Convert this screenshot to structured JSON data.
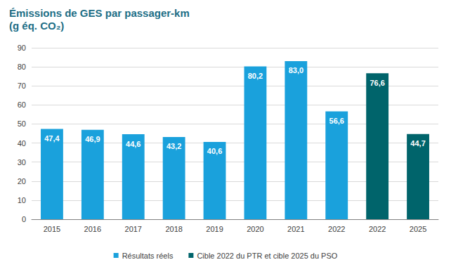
{
  "chart_data": {
    "type": "bar",
    "title": "Émissions de GES par passager-km\n(g éq. CO₂)",
    "categories": [
      "2015",
      "2016",
      "2017",
      "2018",
      "2019",
      "2020",
      "2021",
      "2022",
      "2022",
      "2025"
    ],
    "series": [
      {
        "name": "Résultats réels",
        "color": "#1aa1dc",
        "values": [
          47.4,
          46.9,
          44.6,
          43.2,
          40.6,
          80.2,
          83.0,
          56.6,
          null,
          null
        ],
        "value_labels": [
          "47,4",
          "46,9",
          "44,6",
          "43,2",
          "40,6",
          "80,2",
          "83,0",
          "56,6",
          null,
          null
        ]
      },
      {
        "name": "Cible 2022 du PTR et cible 2025 du PSO",
        "color": "#00646b",
        "values": [
          null,
          null,
          null,
          null,
          null,
          null,
          null,
          null,
          76.6,
          44.7
        ],
        "value_labels": [
          null,
          null,
          null,
          null,
          null,
          null,
          null,
          null,
          "76,6",
          "44,7"
        ]
      }
    ],
    "ylim": [
      0,
      90
    ],
    "yticks": [
      0,
      10,
      20,
      30,
      40,
      50,
      60,
      70,
      80,
      90
    ],
    "grid": true,
    "data_labels": true,
    "legend": "bottom"
  }
}
